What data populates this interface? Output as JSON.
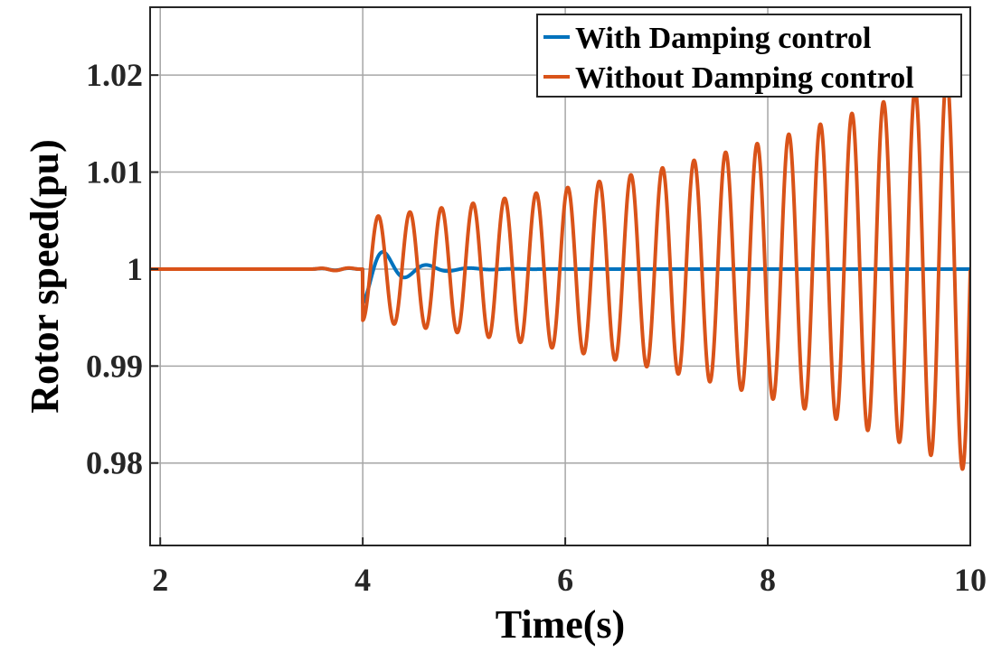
{
  "chart_data": {
    "type": "line",
    "title": "",
    "xlabel": "Time(s)",
    "ylabel": "Rotor speed(pu)",
    "xlim": [
      1.9,
      10
    ],
    "ylim": [
      0.9715,
      1.027
    ],
    "xticks": [
      2,
      4,
      6,
      8,
      10
    ],
    "yticks": [
      0.98,
      0.99,
      1,
      1.01,
      1.02
    ],
    "xtick_labels": [
      "2",
      "4",
      "6",
      "8",
      "10"
    ],
    "ytick_labels": [
      "0.98",
      "0.99",
      "1",
      "1.01",
      "1.02"
    ],
    "grid": true,
    "legend_position": "top-right",
    "disturbance_time": 4.0,
    "series": [
      {
        "name": "With Damping control",
        "color": "#0072BD",
        "baseline": 1.0,
        "initial_dip": -0.0035,
        "peak": 0.0033,
        "period": 0.35,
        "damping_time_constant": 0.3,
        "settles_by": 5.2
      },
      {
        "name": "Without Damping control",
        "color": "#D95319",
        "baseline": 1.0,
        "initial_dip": -0.005,
        "peak_first": 0.0052,
        "peak_at_10s": 0.021,
        "period": 0.29,
        "growth_rate_per_s": 0.23
      }
    ]
  }
}
